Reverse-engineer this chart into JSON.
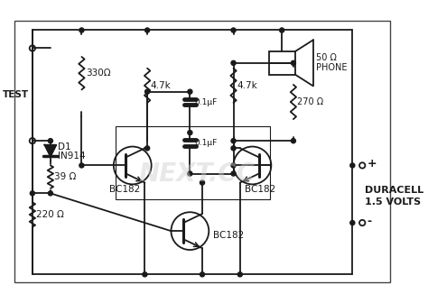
{
  "bg_color": "#ffffff",
  "line_color": "#1a1a1a",
  "fig_width": 4.74,
  "fig_height": 3.36,
  "dpi": 100,
  "labels": {
    "test": "TEST",
    "d1": "D1",
    "in914": "IN914",
    "r330": "330Ω",
    "r47k_left": "4.7k",
    "r47k_right": "4.7k",
    "c01_top": "0.1μF",
    "c01_bot": "0.1μF",
    "r39": "39 Ω",
    "r220": "220 Ω",
    "bc182_left": "BC182",
    "bc182_right": "BC182",
    "bc182_bot": "BC182",
    "phone": "PHONE",
    "r50": "50 Ω",
    "r270": "270 Ω",
    "duracell": "DURACELL",
    "volts": "1.5 VOLTS",
    "plus": "+",
    "minus": "-"
  }
}
